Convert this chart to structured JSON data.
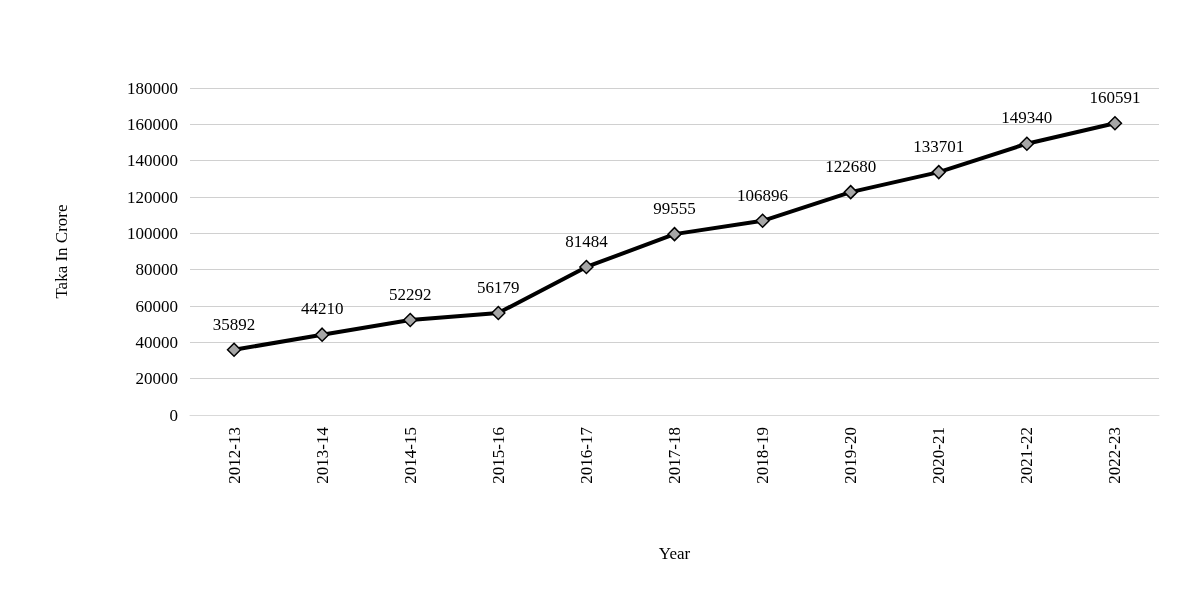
{
  "chart_data": {
    "type": "line",
    "xlabel": "Year",
    "ylabel": "Taka In Crore",
    "categories": [
      "2012-13",
      "2013-14",
      "2014-15",
      "2015-16",
      "2016-17",
      "2017-18",
      "2018-19",
      "2019-20",
      "2020-21",
      "2021-22",
      "2022-23"
    ],
    "series": [
      {
        "color": "#000000",
        "values": [
          35892,
          44210,
          52292,
          56179,
          81484,
          99555,
          106896,
          122680,
          133701,
          149340,
          160591
        ]
      }
    ],
    "ylim": [
      0,
      180000
    ],
    "yticks": [
      0,
      20000,
      40000,
      60000,
      80000,
      100000,
      120000,
      140000,
      160000,
      180000
    ],
    "grid": "y",
    "marker": "diamond",
    "line_style": "solid",
    "data_labels": true
  }
}
